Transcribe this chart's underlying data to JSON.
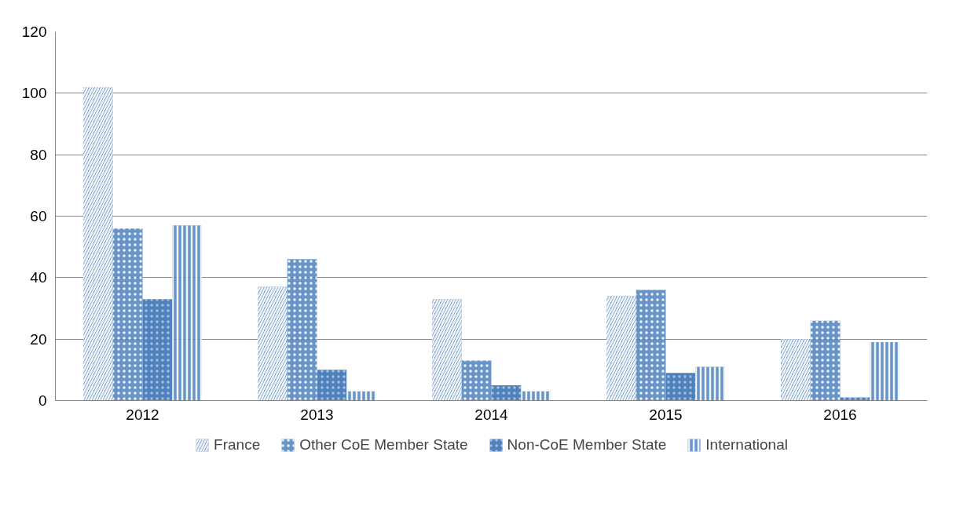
{
  "chart_data": {
    "type": "bar",
    "categories": [
      "2012",
      "2013",
      "2014",
      "2015",
      "2016"
    ],
    "series": [
      {
        "name": "France",
        "color": "#4f81bd",
        "values": [
          102,
          37,
          33,
          34,
          20
        ]
      },
      {
        "name": "Other CoE Member State",
        "color": "#4f81bd",
        "values": [
          56,
          46,
          13,
          36,
          26
        ]
      },
      {
        "name": "Non-CoE Member State",
        "color": "#4f81bd",
        "values": [
          33,
          10,
          5,
          9,
          1
        ]
      },
      {
        "name": "International",
        "color": "#4f81bd",
        "values": [
          57,
          3,
          3,
          11,
          19
        ]
      }
    ],
    "ylim": [
      0,
      120
    ],
    "yticks": [
      0,
      20,
      40,
      60,
      80,
      100,
      120
    ],
    "grid": "y",
    "legend": "bottom"
  }
}
